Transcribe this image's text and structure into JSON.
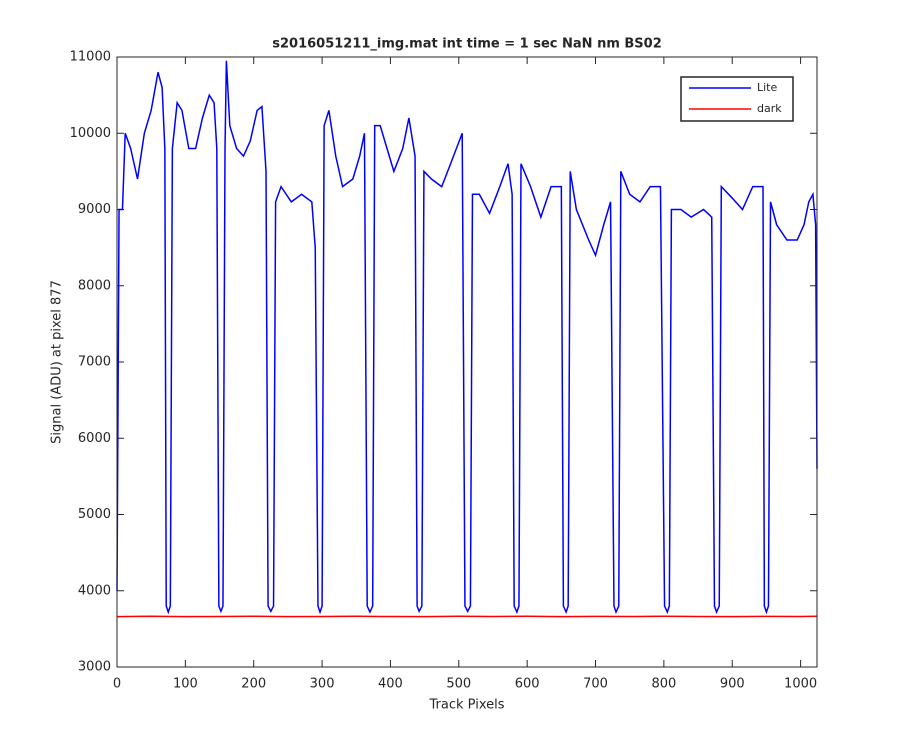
{
  "chart_data": {
    "type": "line",
    "title": "s2016051211_img.mat int time = 1 sec  NaN nm BS02",
    "x_label": "Track Pixels",
    "y_label": "Signal (ADU) at pixel 877",
    "xlim": [
      0,
      1024
    ],
    "ylim": [
      3000,
      11000
    ],
    "xticks": [
      0,
      100,
      200,
      300,
      400,
      500,
      600,
      700,
      800,
      900,
      1000
    ],
    "yticks": [
      3000,
      4000,
      5000,
      6000,
      7000,
      8000,
      9000,
      10000,
      11000
    ],
    "legend": "northeast",
    "series": [
      {
        "name": "Lite",
        "color": "#0000ff",
        "x": [
          0,
          3,
          8,
          12,
          20,
          30,
          40,
          50,
          60,
          66,
          70,
          72,
          75,
          78,
          81,
          88,
          95,
          105,
          115,
          125,
          135,
          142,
          146,
          149,
          152,
          155,
          158,
          160,
          165,
          175,
          185,
          195,
          205,
          212,
          218,
          221,
          225,
          229,
          232,
          240,
          255,
          270,
          285,
          290,
          294,
          297,
          300,
          303,
          310,
          320,
          330,
          345,
          355,
          362,
          366,
          370,
          374,
          377,
          385,
          395,
          405,
          418,
          427,
          436,
          439,
          442,
          446,
          449,
          460,
          475,
          488,
          505,
          509,
          513,
          517,
          520,
          530,
          545,
          560,
          572,
          578,
          581,
          585,
          588,
          591,
          605,
          620,
          635,
          650,
          653,
          657,
          660,
          663,
          672,
          690,
          700,
          712,
          722,
          727,
          730,
          734,
          737,
          750,
          765,
          780,
          795,
          801,
          805,
          808,
          811,
          825,
          840,
          858,
          870,
          874,
          877,
          881,
          884,
          900,
          915,
          930,
          945,
          947,
          950,
          953,
          956,
          965,
          980,
          995,
          1005,
          1012,
          1018,
          1022,
          1024
        ],
        "values": [
          4000,
          9000,
          9000,
          10000,
          9800,
          9400,
          10000,
          10300,
          10800,
          10600,
          9800,
          3800,
          3720,
          3800,
          9800,
          10400,
          10300,
          9800,
          9800,
          10200,
          10500,
          10400,
          9800,
          3800,
          3730,
          3800,
          9800,
          10950,
          10100,
          9800,
          9700,
          9900,
          10300,
          10350,
          9500,
          3800,
          3730,
          3800,
          9100,
          9300,
          9100,
          9200,
          9100,
          8500,
          3800,
          3720,
          3800,
          10100,
          10300,
          9700,
          9300,
          9400,
          9700,
          10000,
          3800,
          3720,
          3800,
          10100,
          10100,
          9800,
          9500,
          9800,
          10200,
          9700,
          3800,
          3730,
          3800,
          9500,
          9400,
          9300,
          9600,
          10000,
          3800,
          3730,
          3800,
          9200,
          9200,
          8950,
          9300,
          9600,
          9200,
          3800,
          3720,
          3800,
          9600,
          9300,
          8900,
          9300,
          9300,
          3800,
          3720,
          3800,
          9500,
          9000,
          8600,
          8400,
          8800,
          9100,
          3800,
          3720,
          3800,
          9500,
          9200,
          9100,
          9300,
          9300,
          3800,
          3720,
          3800,
          9000,
          9000,
          8900,
          9000,
          8900,
          3800,
          3720,
          3800,
          9300,
          9150,
          9000,
          9300,
          9300,
          3800,
          3720,
          3800,
          9100,
          8800,
          8600,
          8600,
          8800,
          9100,
          9200,
          8800,
          5600
        ]
      },
      {
        "name": "dark",
        "color": "#ff0000",
        "x": [
          0,
          50,
          100,
          150,
          200,
          250,
          300,
          350,
          400,
          450,
          500,
          550,
          600,
          650,
          700,
          750,
          800,
          850,
          900,
          950,
          1000,
          1024
        ],
        "values": [
          3660,
          3665,
          3660,
          3662,
          3665,
          3660,
          3663,
          3665,
          3662,
          3660,
          3665,
          3662,
          3666,
          3660,
          3664,
          3662,
          3665,
          3663,
          3661,
          3664,
          3662,
          3665
        ]
      }
    ]
  }
}
